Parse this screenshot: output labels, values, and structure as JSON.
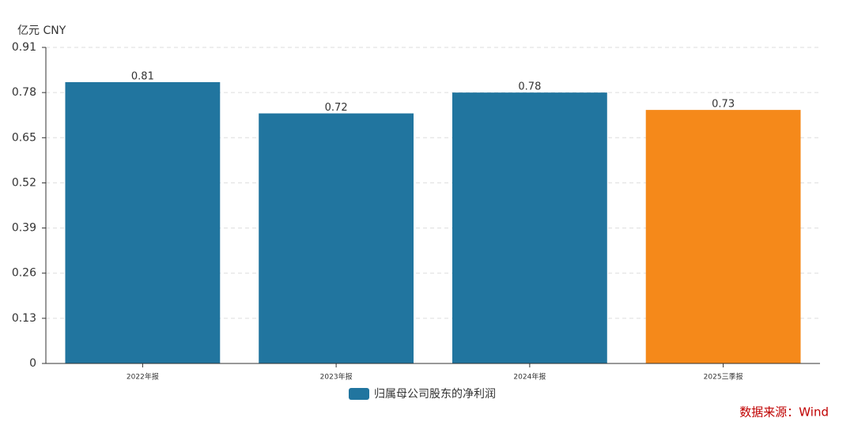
{
  "chart_data": {
    "type": "bar",
    "y_label": "亿元  CNY",
    "categories": [
      "2022年报",
      "2023年报",
      "2024年报",
      "2025三季报"
    ],
    "series": [
      {
        "name": "归属母公司股东的净利润",
        "color": "#21759f",
        "values": [
          0.81,
          0.72,
          0.78,
          0.73
        ]
      }
    ],
    "bar_colors": [
      "#21759f",
      "#21759f",
      "#21759f",
      "#f5891a"
    ],
    "ylim": [
      0,
      0.91
    ],
    "yticks": [
      0,
      0.13,
      0.26,
      0.39,
      0.52,
      0.65,
      0.78,
      0.91
    ],
    "grid": true,
    "source": "数据来源：Wind"
  }
}
